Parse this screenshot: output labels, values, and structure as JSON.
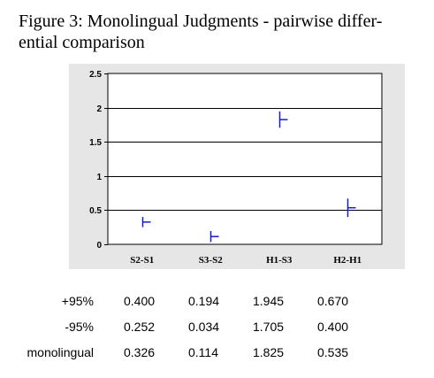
{
  "caption": {
    "line1": "Figure 3: Monolingual Judgments - pairwise differ-",
    "line2": "ential comparison"
  },
  "chart_data": {
    "type": "scatter",
    "categories": [
      "S2-S1",
      "S3-S2",
      "H1-S3",
      "H2-H1"
    ],
    "ylim": [
      0,
      2.5
    ],
    "yticks": [
      "0",
      "0.5",
      "1",
      "1.5",
      "2",
      "2.5"
    ],
    "series": [
      {
        "values": [
          0.326,
          0.114,
          1.825,
          0.535
        ]
      }
    ],
    "upper": [
      0.4,
      0.194,
      1.945,
      0.67
    ],
    "lower": [
      0.252,
      0.034,
      1.705,
      0.4
    ],
    "grid": true,
    "colors": {
      "plot_bg": "#e6e6e6",
      "marker": "#1a1ad6",
      "grid": "#000000"
    }
  },
  "table": {
    "rows": [
      {
        "label": "+95%",
        "values": [
          "0.400",
          "0.194",
          "1.945",
          "0.670"
        ]
      },
      {
        "label": "-95%",
        "values": [
          "0.252",
          "0.034",
          "1.705",
          "0.400"
        ]
      },
      {
        "label": "monolingual",
        "values": [
          "0.326",
          "0.114",
          "1.825",
          "0.535"
        ]
      }
    ]
  }
}
